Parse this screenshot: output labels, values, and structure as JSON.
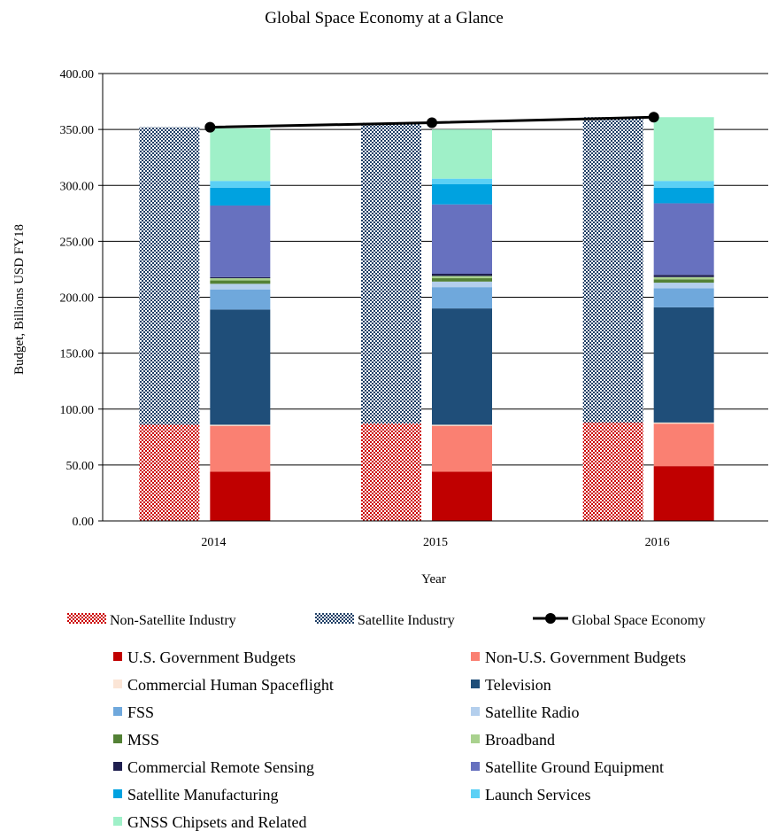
{
  "chart_data": {
    "type": "bar",
    "title": "Global Space Economy at a Glance",
    "xlabel": "Year",
    "ylabel": "Budget, Billions  USD FY18",
    "categories": [
      "2014",
      "2015",
      "2016"
    ],
    "ylim": [
      0,
      400
    ],
    "yticks": [
      "0.00",
      "50.00",
      "100.00",
      "150.00",
      "200.00",
      "250.00",
      "300.00",
      "350.00",
      "400.00"
    ],
    "grid": "horizontal",
    "legend_position": "bottom",
    "stacks": [
      {
        "name": "Industry split",
        "series": [
          {
            "name": "Non-Satellite Industry",
            "color": "#cc0000",
            "pattern": "checker-red",
            "values": [
              86,
              87,
              88
            ]
          },
          {
            "name": "Satellite Industry",
            "color": "#1f3f66",
            "pattern": "checker-navy",
            "values": [
              266,
              269,
              273
            ]
          }
        ]
      },
      {
        "name": "Components",
        "series": [
          {
            "name": "U.S. Government Budgets",
            "color": "#c00000",
            "values": [
              44,
              44,
              49
            ]
          },
          {
            "name": "Non-U.S. Government Budgets",
            "color": "#fa8072",
            "values": [
              41,
              41,
              38
            ]
          },
          {
            "name": "Commercial Human Spaceflight",
            "color": "#fbe5d6",
            "values": [
              1,
              1,
              1
            ]
          },
          {
            "name": "Television",
            "color": "#1f4e79",
            "values": [
              103,
              104,
              103
            ]
          },
          {
            "name": "FSS",
            "color": "#6fa8dc",
            "values": [
              18,
              19,
              17
            ]
          },
          {
            "name": "Satellite Radio",
            "color": "#b4cfed",
            "values": [
              5,
              5,
              5
            ]
          },
          {
            "name": "MSS",
            "color": "#538135",
            "values": [
              3,
              3,
              3
            ]
          },
          {
            "name": "Broadband",
            "color": "#a9d18e",
            "values": [
              2,
              2,
              2
            ]
          },
          {
            "name": "Commercial Remote Sensing",
            "color": "#1f1f4f",
            "values": [
              1,
              2,
              2
            ]
          },
          {
            "name": "Satellite Ground Equipment",
            "color": "#6771bf",
            "values": [
              64,
              62,
              64
            ]
          },
          {
            "name": "Satellite Manufacturing",
            "color": "#00a2e0",
            "values": [
              16,
              18,
              14
            ]
          },
          {
            "name": "Launch Services",
            "color": "#5bd0f5",
            "values": [
              6,
              5,
              6
            ]
          },
          {
            "name": "GNSS Chipsets and Related",
            "color": "#9ff0c8",
            "values": [
              47,
              44,
              57
            ]
          }
        ]
      }
    ],
    "line": {
      "name": "Global Space Economy",
      "color": "#000000",
      "values": [
        352,
        356,
        361
      ]
    }
  }
}
